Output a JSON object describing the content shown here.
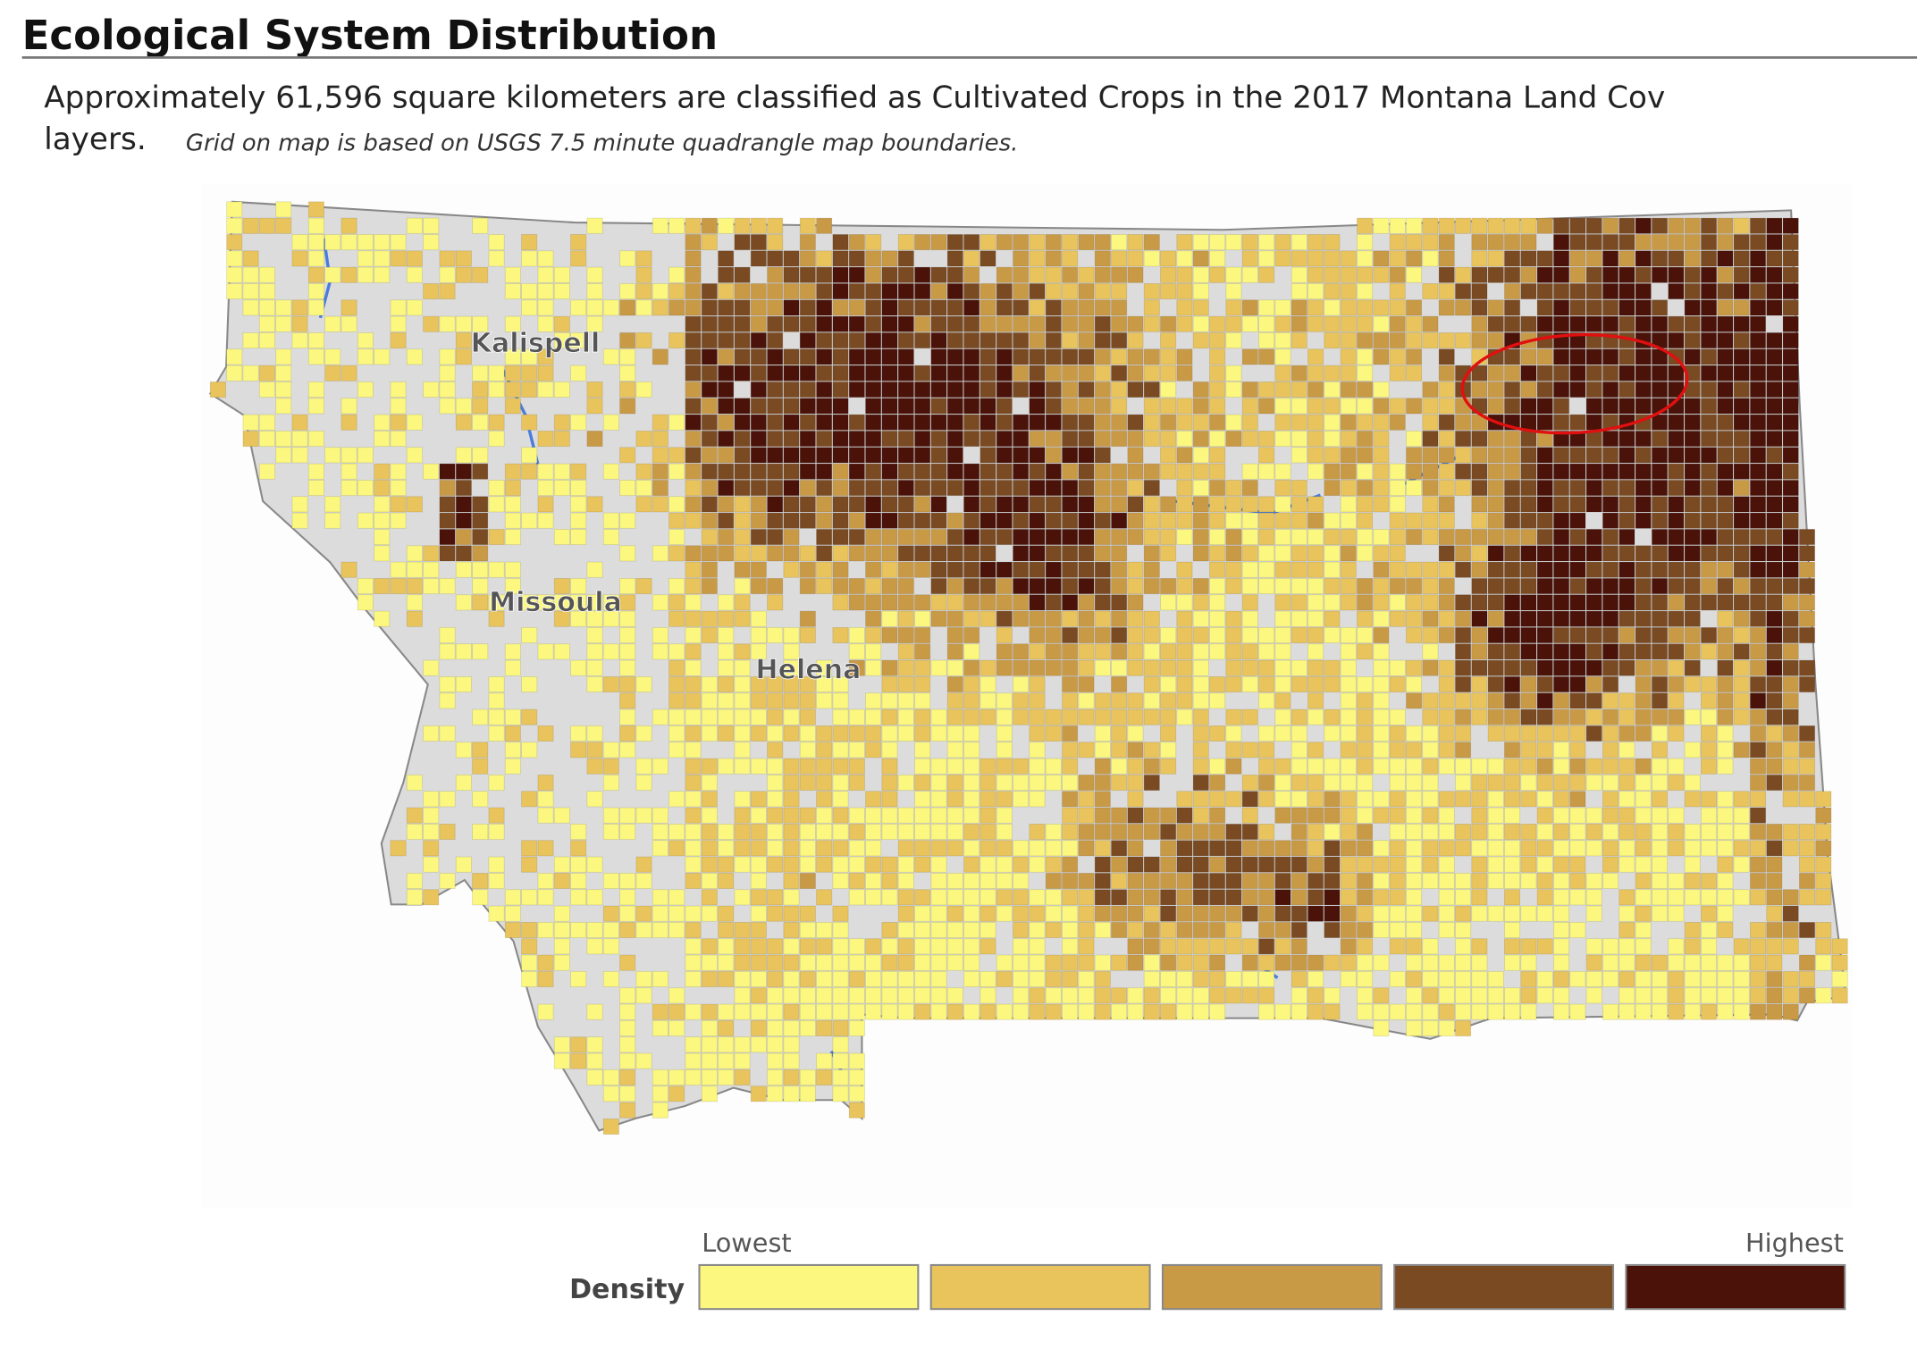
{
  "header": {
    "title": "Ecological System Distribution"
  },
  "description": {
    "line1": "Approximately 61,596 square kilometers are classified as Cultivated Crops in the 2017 Montana Land Cov",
    "line2": "layers.",
    "note": "Grid on map is based on USGS 7.5 minute quadrangle map boundaries."
  },
  "map": {
    "labels": [
      "Kalispell",
      "Missoula",
      "Helena"
    ]
  },
  "legend": {
    "label": "Density",
    "low": "Lowest",
    "high": "Highest",
    "colors": [
      "#fbf77f",
      "#e9c45c",
      "#c99a46",
      "#7a4a22",
      "#4a1208"
    ]
  }
}
